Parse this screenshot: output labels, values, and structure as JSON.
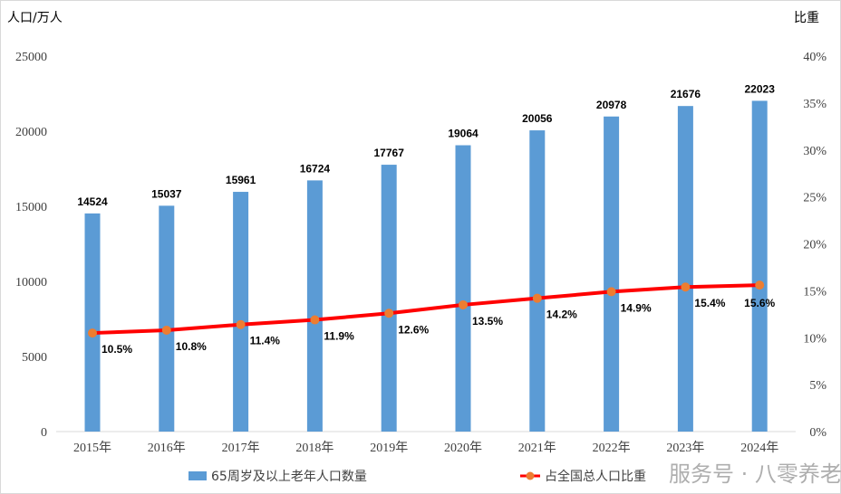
{
  "chart_data": {
    "type": "bar+line",
    "categories": [
      "2015年",
      "2016年",
      "2017年",
      "2018年",
      "2019年",
      "2020年",
      "2021年",
      "2022年",
      "2023年",
      "2024年"
    ],
    "series": [
      {
        "name": "65周岁及以上老年人口数量",
        "type": "bar",
        "axis": "left",
        "color": "#5B9BD5",
        "values": [
          14524,
          15037,
          15961,
          16724,
          17767,
          19064,
          20056,
          20978,
          21676,
          22023
        ],
        "labels": [
          "14524",
          "15037",
          "15961",
          "16724",
          "17767",
          "19064",
          "20056",
          "20978",
          "21676",
          "22023"
        ]
      },
      {
        "name": "占全国总人口比重",
        "type": "line",
        "axis": "right",
        "color": "#FF0000",
        "marker_color": "#ED7D31",
        "values": [
          10.5,
          10.8,
          11.4,
          11.9,
          12.6,
          13.5,
          14.2,
          14.9,
          15.4,
          15.6
        ],
        "labels": [
          "10.5%",
          "10.8%",
          "11.4%",
          "11.9%",
          "12.6%",
          "13.5%",
          "14.2%",
          "14.9%",
          "15.4%",
          "15.6%"
        ]
      }
    ],
    "ylabel": "人口/万人",
    "y2label": "比重",
    "ylim": [
      0,
      25000
    ],
    "y2lim": [
      0,
      40
    ],
    "yticks": [
      "0",
      "5000",
      "10000",
      "15000",
      "20000",
      "25000"
    ],
    "y2ticks": [
      "0%",
      "5%",
      "10%",
      "15%",
      "20%",
      "25%",
      "30%",
      "35%",
      "40%"
    ],
    "grid": false,
    "legend": "bottom"
  },
  "watermark": "服务号 · 八零养老"
}
